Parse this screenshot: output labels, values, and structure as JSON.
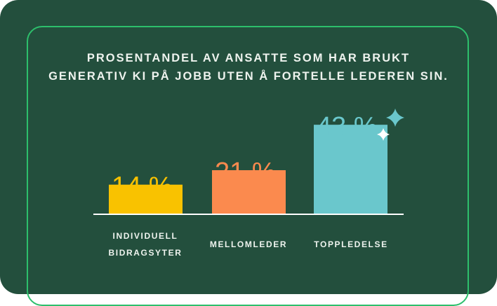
{
  "chart_data": {
    "type": "bar",
    "title_lines": [
      "PROSENTANDEL AV ANSATTE SOM HAR BRUKT",
      "GENERATIV KI PÅ JOBB UTEN Å FORTELLE LEDEREN SIN."
    ],
    "categories": [
      [
        "INDIVIDUELL",
        "BIDRAGSYTER"
      ],
      [
        "MELLOMLEDER"
      ],
      [
        "TOPPLEDELSE"
      ]
    ],
    "values": [
      14,
      21,
      43
    ],
    "data_labels": [
      "14 %",
      "21 %",
      "43 %"
    ],
    "colors": [
      "#f9c200",
      "#fb8a4e",
      "#6ac7cc"
    ],
    "ylim": [
      0,
      45
    ],
    "grid": false,
    "legend": "none"
  },
  "colors": {
    "background": "#234f3d",
    "border": "#2dbf6c",
    "text": "#eef3ee"
  },
  "decorations": [
    "sparkle-icon-teal",
    "sparkle-icon-white"
  ]
}
